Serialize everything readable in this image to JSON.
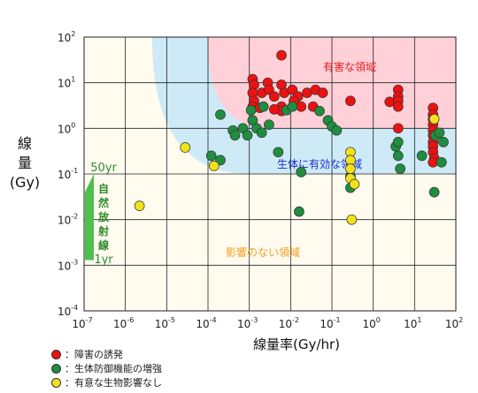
{
  "chart_data": {
    "type": "scatter",
    "x_scale": "log",
    "y_scale": "log",
    "xlim": [
      1e-07,
      100
    ],
    "ylim": [
      0.0001,
      100
    ],
    "x_tick_exponents": [
      -7,
      -6,
      -5,
      -4,
      -3,
      -2,
      -1,
      0,
      1,
      2
    ],
    "y_tick_exponents": [
      -4,
      -3,
      -2,
      -1,
      0,
      1,
      2
    ],
    "tick_base": "10",
    "xlabel": "線量率(Gy/hr)",
    "ylabel_lines": [
      "線",
      "量",
      "(Gy)"
    ],
    "grid": true,
    "regions": [
      {
        "label": "有害な領域",
        "color": "#ffd0d8",
        "text_color": "#e02020"
      },
      {
        "label": "生体に有効な領域",
        "color": "#cdeaf6",
        "text_color": "#1a2fd0"
      },
      {
        "label": "影響のない領域",
        "color": "#fffbef",
        "text_color": "#f0a020"
      }
    ],
    "natural_radiation": {
      "label_chars": [
        "自",
        "然",
        "放",
        "射",
        "線"
      ],
      "top_label": "50yr",
      "bottom_label": "1yr",
      "color": "#4dc14d",
      "label_color": "#2e8b2e"
    },
    "series": [
      {
        "name": "障害の誘発",
        "color": "#ee1111",
        "points": [
          [
            0.006,
            40
          ],
          [
            0.0012,
            12
          ],
          [
            0.0013,
            9
          ],
          [
            0.002,
            6
          ],
          [
            0.0012,
            6
          ],
          [
            0.0013,
            4
          ],
          [
            0.0012,
            3
          ],
          [
            0.0018,
            2.8
          ],
          [
            0.0028,
            10
          ],
          [
            0.003,
            7
          ],
          [
            0.004,
            5
          ],
          [
            0.006,
            9
          ],
          [
            0.007,
            6
          ],
          [
            0.006,
            3
          ],
          [
            0.006,
            2.4
          ],
          [
            0.004,
            2.6
          ],
          [
            0.011,
            7
          ],
          [
            0.015,
            5
          ],
          [
            0.012,
            4
          ],
          [
            0.018,
            3
          ],
          [
            0.025,
            6
          ],
          [
            0.035,
            3
          ],
          [
            0.04,
            7
          ],
          [
            0.06,
            6
          ],
          [
            0.28,
            4
          ],
          [
            2.5,
            3.8
          ],
          [
            4,
            7
          ],
          [
            4,
            5
          ],
          [
            4,
            4
          ],
          [
            4,
            3
          ],
          [
            4,
            1
          ],
          [
            28,
            2.8
          ],
          [
            28,
            2
          ],
          [
            28,
            1.6
          ],
          [
            28,
            1.2
          ],
          [
            28,
            0.9
          ],
          [
            28,
            0.7
          ],
          [
            28,
            0.5
          ],
          [
            28,
            0.4
          ],
          [
            28,
            0.3
          ],
          [
            30,
            0.22
          ],
          [
            28,
            0.18
          ]
        ]
      },
      {
        "name": "生体防御機能の増強",
        "color": "#1f8e3f",
        "points": [
          [
            0.0002,
            0.2
          ],
          [
            0.00012,
            0.25
          ],
          [
            0.0002,
            2
          ],
          [
            0.0004,
            0.9
          ],
          [
            0.00045,
            0.7
          ],
          [
            0.0007,
            1
          ],
          [
            0.0009,
            0.7
          ],
          [
            0.0011,
            2.5
          ],
          [
            0.0012,
            1.5
          ],
          [
            0.0015,
            1
          ],
          [
            0.002,
            0.8
          ],
          [
            0.0022,
            3
          ],
          [
            0.003,
            1.2
          ],
          [
            0.005,
            0.3
          ],
          [
            0.008,
            2.5
          ],
          [
            0.011,
            3
          ],
          [
            0.018,
            0.11
          ],
          [
            0.016,
            0.015
          ],
          [
            0.05,
            2.4
          ],
          [
            0.08,
            1.5
          ],
          [
            0.1,
            1.1
          ],
          [
            0.13,
            0.9
          ],
          [
            0.28,
            0.09
          ],
          [
            0.28,
            0.05
          ],
          [
            3.5,
            0.4
          ],
          [
            4,
            0.5
          ],
          [
            4,
            0.25
          ],
          [
            4.5,
            0.13
          ],
          [
            15,
            0.25
          ],
          [
            30,
            0.04
          ],
          [
            32,
            0.7
          ],
          [
            40,
            0.8
          ],
          [
            50,
            0.5
          ],
          [
            45,
            0.18
          ]
        ]
      },
      {
        "name": "有意な生物影響なし",
        "color": "#f2e21a",
        "points": [
          [
            2.2e-06,
            0.02
          ],
          [
            2.8e-05,
            0.38
          ],
          [
            0.00014,
            0.15
          ],
          [
            0.28,
            0.3
          ],
          [
            0.28,
            0.2
          ],
          [
            0.28,
            0.13
          ],
          [
            0.28,
            0.08
          ],
          [
            0.3,
            0.01
          ],
          [
            0.35,
            0.06
          ],
          [
            30,
            1.6
          ]
        ]
      }
    ]
  },
  "legend": [
    {
      "label": "：障害の誘発",
      "color": "#ee1111"
    },
    {
      "label": "：生体防御機能の増強",
      "color": "#1f8e3f"
    },
    {
      "label": "：有意な生物影響なし",
      "color": "#f2e21a"
    }
  ]
}
